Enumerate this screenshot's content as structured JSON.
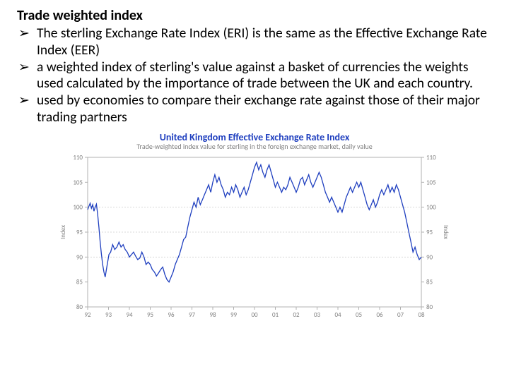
{
  "title": "Trade weighted index",
  "bullets": [
    "The sterling Exchange Rate Index (ERI) is the same as the Effective Exchange Rate Index (EER)",
    "a weighted index of sterling's value against a basket of currencies the weights used calculated by the importance of trade between the UK and each country.",
    "used by economies to compare their exchange rate against those of their major trading partners"
  ],
  "chart": {
    "type": "line",
    "title": "United Kingdom Effective Exchange Rate Index",
    "subtitle": "Trade-weighted index value for sterling in the foreign exchange market, daily value",
    "title_color": "#1f3fbf",
    "subtitle_color": "#808080",
    "title_fontsize": 14,
    "subtitle_fontsize": 10,
    "background_color": "#ffffff",
    "border_color": "#b0b0b0",
    "grid_color": "#d8d8d8",
    "line_color": "#1f3fbf",
    "line_width": 1.3,
    "ylabel_left": "Index",
    "ylabel_right": "Index",
    "ylim": [
      80,
      110
    ],
    "ytick_step": 5,
    "y_ticks": [
      80,
      85,
      90,
      95,
      100,
      105,
      110
    ],
    "x_ticks": [
      "92",
      "93",
      "94",
      "95",
      "96",
      "97",
      "98",
      "99",
      "00",
      "01",
      "02",
      "03",
      "04",
      "05",
      "06",
      "07",
      "08"
    ],
    "inner_h_lines": [
      90,
      95,
      100
    ],
    "series": [
      [
        0.0,
        99.5
      ],
      [
        0.06,
        100.2
      ],
      [
        0.12,
        100.8
      ],
      [
        0.18,
        99.8
      ],
      [
        0.24,
        100.5
      ],
      [
        0.3,
        99.2
      ],
      [
        0.36,
        100.0
      ],
      [
        0.42,
        100.6
      ],
      [
        0.48,
        98.5
      ],
      [
        0.54,
        96.0
      ],
      [
        0.6,
        93.0
      ],
      [
        0.66,
        90.5
      ],
      [
        0.72,
        88.5
      ],
      [
        0.78,
        87.0
      ],
      [
        0.84,
        86.0
      ],
      [
        0.9,
        87.5
      ],
      [
        0.96,
        89.0
      ],
      [
        1.02,
        90.5
      ],
      [
        1.1,
        91.0
      ],
      [
        1.2,
        92.5
      ],
      [
        1.3,
        91.5
      ],
      [
        1.4,
        92.0
      ],
      [
        1.5,
        93.0
      ],
      [
        1.6,
        92.0
      ],
      [
        1.7,
        92.5
      ],
      [
        1.8,
        91.5
      ],
      [
        1.9,
        91.0
      ],
      [
        2.0,
        90.0
      ],
      [
        2.1,
        90.5
      ],
      [
        2.2,
        91.0
      ],
      [
        2.3,
        90.2
      ],
      [
        2.4,
        89.5
      ],
      [
        2.5,
        89.8
      ],
      [
        2.6,
        91.0
      ],
      [
        2.7,
        90.0
      ],
      [
        2.8,
        88.5
      ],
      [
        2.9,
        89.0
      ],
      [
        3.0,
        88.5
      ],
      [
        3.1,
        87.5
      ],
      [
        3.2,
        87.0
      ],
      [
        3.3,
        86.2
      ],
      [
        3.4,
        86.8
      ],
      [
        3.5,
        87.5
      ],
      [
        3.6,
        88.0
      ],
      [
        3.7,
        86.5
      ],
      [
        3.8,
        85.5
      ],
      [
        3.9,
        85.0
      ],
      [
        4.0,
        86.0
      ],
      [
        4.1,
        87.0
      ],
      [
        4.2,
        88.5
      ],
      [
        4.3,
        89.5
      ],
      [
        4.4,
        90.5
      ],
      [
        4.5,
        92.0
      ],
      [
        4.6,
        93.5
      ],
      [
        4.7,
        94.0
      ],
      [
        4.8,
        96.0
      ],
      [
        4.9,
        98.0
      ],
      [
        5.0,
        99.5
      ],
      [
        5.1,
        101.0
      ],
      [
        5.2,
        100.0
      ],
      [
        5.3,
        102.0
      ],
      [
        5.4,
        100.5
      ],
      [
        5.5,
        101.5
      ],
      [
        5.6,
        102.5
      ],
      [
        5.7,
        103.5
      ],
      [
        5.8,
        104.5
      ],
      [
        5.9,
        103.0
      ],
      [
        6.0,
        105.0
      ],
      [
        6.1,
        106.5
      ],
      [
        6.2,
        105.0
      ],
      [
        6.3,
        106.0
      ],
      [
        6.4,
        104.5
      ],
      [
        6.5,
        103.5
      ],
      [
        6.6,
        102.0
      ],
      [
        6.7,
        103.0
      ],
      [
        6.8,
        102.5
      ],
      [
        6.9,
        104.0
      ],
      [
        7.0,
        103.0
      ],
      [
        7.1,
        104.5
      ],
      [
        7.2,
        103.5
      ],
      [
        7.3,
        102.0
      ],
      [
        7.4,
        103.0
      ],
      [
        7.5,
        104.0
      ],
      [
        7.6,
        102.5
      ],
      [
        7.7,
        103.5
      ],
      [
        7.8,
        105.0
      ],
      [
        7.9,
        106.5
      ],
      [
        8.0,
        108.0
      ],
      [
        8.1,
        109.0
      ],
      [
        8.2,
        107.5
      ],
      [
        8.3,
        108.5
      ],
      [
        8.4,
        107.0
      ],
      [
        8.5,
        106.0
      ],
      [
        8.6,
        107.5
      ],
      [
        8.7,
        108.5
      ],
      [
        8.8,
        107.0
      ],
      [
        8.9,
        105.5
      ],
      [
        9.0,
        104.0
      ],
      [
        9.1,
        105.0
      ],
      [
        9.2,
        104.0
      ],
      [
        9.3,
        103.0
      ],
      [
        9.4,
        104.0
      ],
      [
        9.5,
        103.5
      ],
      [
        9.6,
        104.5
      ],
      [
        9.7,
        106.0
      ],
      [
        9.8,
        105.0
      ],
      [
        9.9,
        104.0
      ],
      [
        10.0,
        103.0
      ],
      [
        10.1,
        104.0
      ],
      [
        10.2,
        105.5
      ],
      [
        10.3,
        106.0
      ],
      [
        10.4,
        104.5
      ],
      [
        10.5,
        105.5
      ],
      [
        10.6,
        106.5
      ],
      [
        10.7,
        105.0
      ],
      [
        10.8,
        104.0
      ],
      [
        10.9,
        105.0
      ],
      [
        11.0,
        106.0
      ],
      [
        11.1,
        107.0
      ],
      [
        11.2,
        106.0
      ],
      [
        11.3,
        104.5
      ],
      [
        11.4,
        103.0
      ],
      [
        11.5,
        102.0
      ],
      [
        11.6,
        101.0
      ],
      [
        11.7,
        102.0
      ],
      [
        11.8,
        101.0
      ],
      [
        11.9,
        100.0
      ],
      [
        12.0,
        99.0
      ],
      [
        12.1,
        100.0
      ],
      [
        12.2,
        99.0
      ],
      [
        12.3,
        100.5
      ],
      [
        12.4,
        102.0
      ],
      [
        12.5,
        103.0
      ],
      [
        12.6,
        104.0
      ],
      [
        12.7,
        103.0
      ],
      [
        12.8,
        104.0
      ],
      [
        12.9,
        105.0
      ],
      [
        13.0,
        104.0
      ],
      [
        13.1,
        105.0
      ],
      [
        13.2,
        103.5
      ],
      [
        13.3,
        102.0
      ],
      [
        13.4,
        100.5
      ],
      [
        13.5,
        99.5
      ],
      [
        13.6,
        100.5
      ],
      [
        13.7,
        101.5
      ],
      [
        13.8,
        100.0
      ],
      [
        13.9,
        101.0
      ],
      [
        14.0,
        102.5
      ],
      [
        14.1,
        103.5
      ],
      [
        14.2,
        102.5
      ],
      [
        14.3,
        103.5
      ],
      [
        14.4,
        104.5
      ],
      [
        14.5,
        103.0
      ],
      [
        14.6,
        104.0
      ],
      [
        14.7,
        103.0
      ],
      [
        14.8,
        104.5
      ],
      [
        14.9,
        103.5
      ],
      [
        15.0,
        102.0
      ],
      [
        15.1,
        100.5
      ],
      [
        15.2,
        99.0
      ],
      [
        15.3,
        97.0
      ],
      [
        15.4,
        95.0
      ],
      [
        15.5,
        93.0
      ],
      [
        15.6,
        91.0
      ],
      [
        15.7,
        92.0
      ],
      [
        15.8,
        90.5
      ],
      [
        15.9,
        89.5
      ],
      [
        16.0,
        90.0
      ]
    ]
  }
}
